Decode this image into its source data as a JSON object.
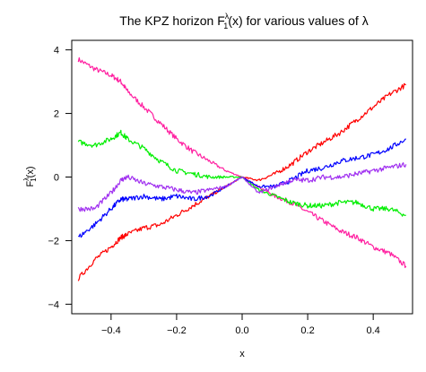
{
  "chart_data": {
    "type": "line",
    "title_main": "The KPZ horizon F",
    "title_sup": "λ",
    "title_sub": "1",
    "title_rest": "(x) for various values of λ",
    "xlabel": "x",
    "ylabel_main": "F",
    "ylabel_sup": "λ",
    "ylabel_sub": "1",
    "ylabel_rest": "(x)",
    "xlim": [
      -0.52,
      0.52
    ],
    "ylim": [
      -4.3,
      4.3
    ],
    "xticks": [
      -0.4,
      -0.2,
      0.0,
      0.2,
      0.4
    ],
    "xtick_labels": [
      "−0.4",
      "−0.2",
      "0.0",
      "0.2",
      "0.4"
    ],
    "yticks": [
      -4,
      -2,
      0,
      2,
      4
    ],
    "ytick_labels": [
      "−4",
      "−2",
      "0",
      "2",
      "4"
    ],
    "grid": false,
    "x": [
      -0.5,
      -0.45,
      -0.4,
      -0.37,
      -0.35,
      -0.3,
      -0.25,
      -0.2,
      -0.15,
      -0.1,
      -0.05,
      0.0,
      0.05,
      0.1,
      0.15,
      0.2,
      0.25,
      0.3,
      0.35,
      0.4,
      0.45,
      0.5
    ],
    "series": [
      {
        "color": "#ff1fa0",
        "values": [
          3.7,
          3.4,
          3.2,
          3.0,
          2.7,
          2.2,
          1.7,
          1.2,
          0.8,
          0.5,
          0.2,
          0.0,
          -0.3,
          -0.6,
          -0.8,
          -1.1,
          -1.4,
          -1.7,
          -1.9,
          -2.2,
          -2.4,
          -2.8
        ]
      },
      {
        "color": "#ff0000",
        "values": [
          -3.2,
          -2.6,
          -2.2,
          -1.9,
          -1.8,
          -1.6,
          -1.5,
          -1.2,
          -0.9,
          -0.6,
          -0.3,
          0.0,
          -0.1,
          0.1,
          0.4,
          0.8,
          1.1,
          1.4,
          1.8,
          2.2,
          2.6,
          2.9
        ]
      },
      {
        "color": "#00ee00",
        "values": [
          1.1,
          1.0,
          1.2,
          1.4,
          1.2,
          0.9,
          0.5,
          0.2,
          0.1,
          0.0,
          0.0,
          0.0,
          -0.4,
          -0.6,
          -0.8,
          -0.9,
          -0.9,
          -0.8,
          -0.8,
          -1.0,
          -1.0,
          -1.2
        ]
      },
      {
        "color": "#0000ff",
        "values": [
          -1.9,
          -1.5,
          -1.0,
          -0.7,
          -0.7,
          -0.6,
          -0.7,
          -0.6,
          -0.7,
          -0.6,
          -0.3,
          0.0,
          -0.3,
          -0.3,
          -0.1,
          0.2,
          0.3,
          0.5,
          0.6,
          0.7,
          0.9,
          1.2
        ]
      },
      {
        "color": "#a030f0",
        "values": [
          -1.0,
          -1.0,
          -0.5,
          -0.1,
          0.0,
          -0.2,
          -0.3,
          -0.4,
          -0.5,
          -0.4,
          -0.3,
          0.0,
          -0.5,
          -0.3,
          -0.1,
          -0.1,
          0.0,
          0.0,
          0.1,
          0.2,
          0.3,
          0.4
        ]
      }
    ]
  }
}
